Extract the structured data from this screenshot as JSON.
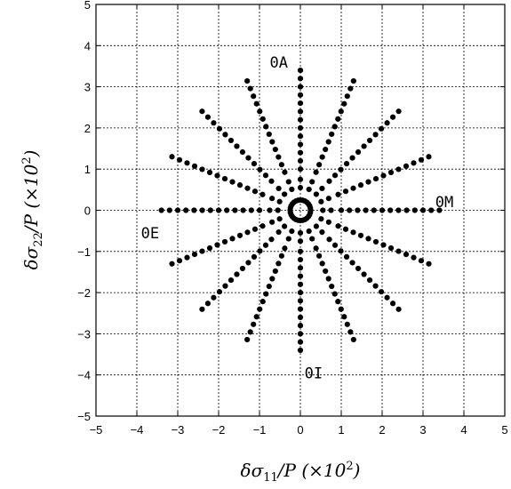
{
  "chart_data": {
    "type": "scatter",
    "title": "",
    "xlabel": "δσ11/P (×10²)",
    "ylabel": "δσ22/P (×10²)",
    "xlabel_parts": {
      "delta": "δ",
      "sigma": "σ",
      "sub": "11",
      "rest": "/P  (×10",
      "sup": "2",
      "close": ")"
    },
    "ylabel_parts": {
      "delta": "δ",
      "sigma": "σ",
      "sub": "22",
      "rest": "/P  (×10",
      "sup": "2",
      "close": ")"
    },
    "xlim": [
      -5,
      5
    ],
    "ylim": [
      -5,
      5
    ],
    "xticks": [
      "−5",
      "−4",
      "−3",
      "−2",
      "−1",
      "0",
      "1",
      "2",
      "3",
      "4",
      "5"
    ],
    "yticks": [
      "−5",
      "−4",
      "−3",
      "−2",
      "−1",
      "0",
      "1",
      "2",
      "3",
      "4",
      "5"
    ],
    "grid": true,
    "ray_angles_deg": [
      0,
      22.5,
      45,
      67.5,
      90,
      112.5,
      135,
      157.5,
      180,
      202.5,
      225,
      247.5,
      270,
      292.5,
      315,
      337.5
    ],
    "ray_radii": [
      0.55,
      0.75,
      1.0,
      1.2,
      1.4,
      1.6,
      1.8,
      2.0,
      2.2,
      2.4,
      2.6,
      2.8,
      3.0,
      3.2,
      3.4
    ],
    "ring_radius": 0.25,
    "ring_point_count": 28,
    "annotations": [
      {
        "text": "0A",
        "x": -0.75,
        "y": 3.6
      },
      {
        "text": "0M",
        "x": 3.3,
        "y": 0.2
      },
      {
        "text": "0E",
        "x": -3.9,
        "y": -0.55
      },
      {
        "text": "0I",
        "x": 0.1,
        "y": -3.95
      }
    ]
  }
}
